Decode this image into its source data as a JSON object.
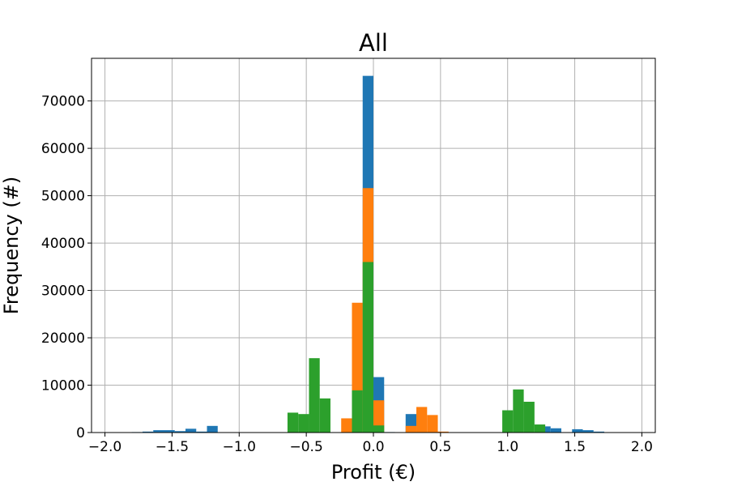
{
  "chart_data": {
    "type": "bar",
    "title": "All",
    "xlabel": "Profit (€)",
    "ylabel": "Frequency (#)",
    "xlim": [
      -2.1,
      2.1
    ],
    "ylim": [
      0,
      79000
    ],
    "grid": true,
    "legend": "none",
    "stacked": "overlapping histograms (later series drawn on top)",
    "bin_width": 0.08,
    "x_ticks": [
      -2.0,
      -1.5,
      -1.0,
      -0.5,
      0.0,
      0.5,
      1.0,
      1.5,
      2.0
    ],
    "x_tick_labels": [
      "−2.0",
      "−1.5",
      "−1.0",
      "−0.5",
      "0.0",
      "0.5",
      "1.0",
      "1.5",
      "2.0"
    ],
    "y_ticks": [
      0,
      10000,
      20000,
      30000,
      40000,
      50000,
      60000,
      70000
    ],
    "y_tick_labels": [
      "0",
      "10000",
      "20000",
      "30000",
      "40000",
      "50000",
      "60000",
      "70000"
    ],
    "series": [
      {
        "color": "#1f77b4",
        "bins": [
          {
            "x": -1.76,
            "value": 100
          },
          {
            "x": -1.68,
            "value": 200
          },
          {
            "x": -1.6,
            "value": 500
          },
          {
            "x": -1.52,
            "value": 500
          },
          {
            "x": -1.44,
            "value": 300
          },
          {
            "x": -1.36,
            "value": 800
          },
          {
            "x": -1.28,
            "value": 200
          },
          {
            "x": -1.2,
            "value": 1400
          },
          {
            "x": -0.04,
            "value": 75300
          },
          {
            "x": 0.04,
            "value": 11700
          },
          {
            "x": 0.12,
            "value": 100
          },
          {
            "x": 0.28,
            "value": 3900
          },
          {
            "x": 1.28,
            "value": 1300
          },
          {
            "x": 1.36,
            "value": 900
          },
          {
            "x": 1.52,
            "value": 700
          },
          {
            "x": 1.6,
            "value": 500
          },
          {
            "x": 1.68,
            "value": 200
          }
        ]
      },
      {
        "color": "#ff7f0e",
        "bins": [
          {
            "x": -0.2,
            "value": 3000
          },
          {
            "x": -0.12,
            "value": 27400
          },
          {
            "x": -0.04,
            "value": 51600
          },
          {
            "x": 0.04,
            "value": 6800
          },
          {
            "x": 0.28,
            "value": 1400
          },
          {
            "x": 0.36,
            "value": 5400
          },
          {
            "x": 0.44,
            "value": 3700
          },
          {
            "x": 0.52,
            "value": 200
          }
        ]
      },
      {
        "color": "#2ca02c",
        "bins": [
          {
            "x": -0.6,
            "value": 4200
          },
          {
            "x": -0.52,
            "value": 3900
          },
          {
            "x": -0.44,
            "value": 15700
          },
          {
            "x": -0.36,
            "value": 7200
          },
          {
            "x": -0.12,
            "value": 8900
          },
          {
            "x": -0.04,
            "value": 36000
          },
          {
            "x": 0.04,
            "value": 1500
          },
          {
            "x": 1.0,
            "value": 4700
          },
          {
            "x": 1.08,
            "value": 9100
          },
          {
            "x": 1.16,
            "value": 6500
          },
          {
            "x": 1.24,
            "value": 1700
          }
        ]
      }
    ]
  }
}
